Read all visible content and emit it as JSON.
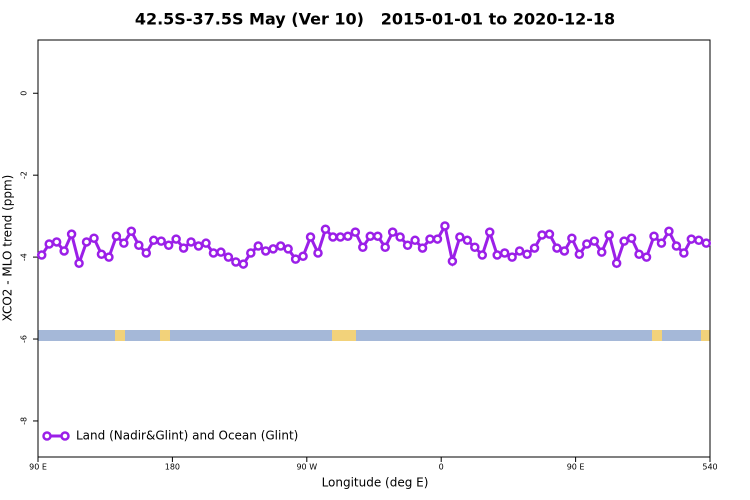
{
  "chart_data": {
    "type": "line",
    "title": "42.5S-37.5S May (Ver 10)   2015-01-01 to 2020-12-18",
    "x_label": "Longitude (deg E)",
    "y_label": "XCO2 - MLO trend (ppm)",
    "xlim": [
      90,
      540
    ],
    "ylim": [
      -8.88,
      1.3
    ],
    "xticks": [
      {
        "value": 90,
        "label": "90 E"
      },
      180,
      {
        "value": 270,
        "label": "90 W"
      },
      {
        "value": 360,
        "label": "0"
      },
      {
        "value": 450,
        "label": "90 E"
      },
      540
    ],
    "yticks": [
      0,
      -2,
      -4,
      -6,
      -8
    ],
    "legend": "lower left",
    "x": [
      92.5,
      97.5,
      102.5,
      107.5,
      112.5,
      117.5,
      122.5,
      127.5,
      132.5,
      137.5,
      142.5,
      147.5,
      152.5,
      157.5,
      162.5,
      167.5,
      172.5,
      177.5,
      182.5,
      187.5,
      192.5,
      197.5,
      202.5,
      207.5,
      212.5,
      217.5,
      222.5,
      227.5,
      232.5,
      237.5,
      242.5,
      247.5,
      252.5,
      257.5,
      262.5,
      267.5,
      272.5,
      277.5,
      282.5,
      287.5,
      292.5,
      297.5,
      302.5,
      307.5,
      312.5,
      317.5,
      322.5,
      327.5,
      332.5,
      337.5,
      342.5,
      347.5,
      352.5,
      357.5,
      362.5,
      367.5,
      372.5,
      377.5,
      382.5,
      387.5,
      392.5,
      397.5,
      402.5,
      407.5,
      412.5,
      417.5,
      422.5,
      427.5,
      432.5,
      437.5,
      442.5,
      447.5,
      452.5,
      457.5,
      462.5,
      467.5,
      472.5,
      477.5,
      482.5,
      487.5,
      492.5,
      497.5,
      502.5,
      507.5,
      512.5,
      517.5,
      522.5,
      527.5,
      532.5,
      537.5
    ],
    "series": [
      {
        "name": "Land (Nadir&Glint) and Ocean (Glint)",
        "color": "#9b1fe8",
        "values": [
          -3.95,
          -3.68,
          -3.63,
          -3.85,
          -3.44,
          -4.15,
          -3.63,
          -3.54,
          -3.93,
          -4.0,
          -3.49,
          -3.66,
          -3.37,
          -3.71,
          -3.9,
          -3.59,
          -3.61,
          -3.71,
          -3.56,
          -3.78,
          -3.63,
          -3.73,
          -3.66,
          -3.9,
          -3.88,
          -4.0,
          -4.12,
          -4.17,
          -3.9,
          -3.73,
          -3.85,
          -3.8,
          -3.73,
          -3.8,
          -4.05,
          -3.98,
          -3.51,
          -3.9,
          -3.32,
          -3.51,
          -3.51,
          -3.49,
          -3.39,
          -3.76,
          -3.49,
          -3.49,
          -3.76,
          -3.39,
          -3.51,
          -3.71,
          -3.59,
          -3.78,
          -3.56,
          -3.56,
          -3.24,
          -4.1,
          -3.51,
          -3.59,
          -3.76,
          -3.95,
          -3.39,
          -3.95,
          -3.9,
          -4.0,
          -3.85,
          -3.93,
          -3.78,
          -3.46,
          -3.44,
          -3.78,
          -3.85,
          -3.54,
          -3.93,
          -3.68,
          -3.61,
          -3.88,
          -3.46,
          -4.15,
          -3.61,
          -3.54,
          -3.93,
          -4.0,
          -3.49,
          -3.66,
          -3.37,
          -3.73,
          -3.9,
          -3.56,
          -3.59,
          -3.66
        ]
      }
    ]
  }
}
